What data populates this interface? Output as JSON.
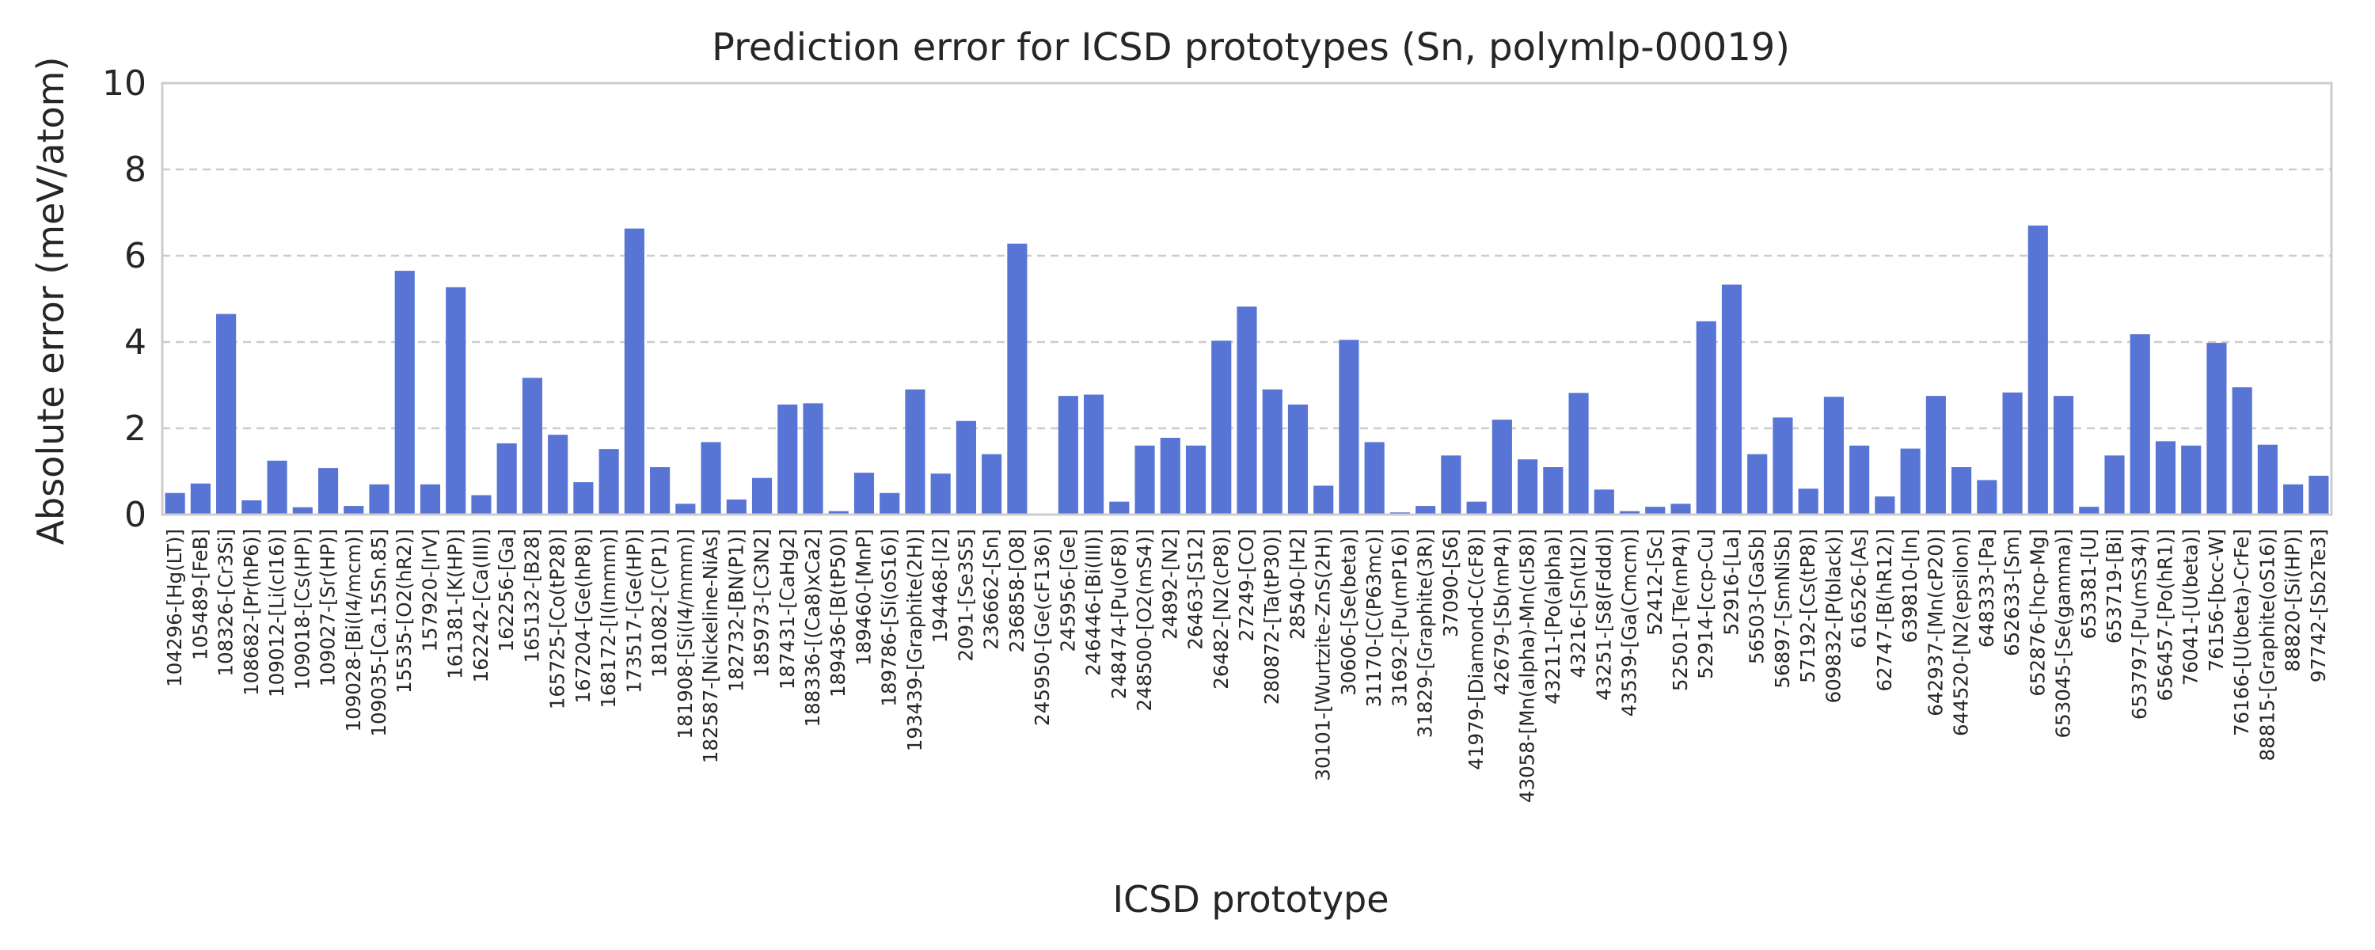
{
  "chart_data": {
    "type": "bar",
    "title": "Prediction error for ICSD prototypes (Sn, polymlp-00019)",
    "xlabel": "ICSD prototype",
    "ylabel": "Absolute error (meV/atom)",
    "ylim": [
      0,
      10
    ],
    "yticks": [
      "0",
      "2",
      "4",
      "6",
      "8",
      "10"
    ],
    "grid": "horizontal dashed",
    "bar_color": "#5875d5",
    "categories": [
      "104296-[Hg(LT)]",
      "105489-[FeB]",
      "108326-[Cr3Si]",
      "108682-[Pr(hP6)]",
      "109012-[Li(cI16)]",
      "109018-[Cs(HP)]",
      "109027-[Sr(HP)]",
      "109028-[Bi(I4/mcm)]",
      "109035-[Ca.15Sn.85]",
      "15535-[O2(hR2)]",
      "157920-[IrV]",
      "161381-[K(HP)]",
      "162242-[Ca(III)]",
      "162256-[Ga]",
      "165132-[B28]",
      "165725-[Co(tP28)]",
      "167204-[Ge(hP8)]",
      "168172-[I(Immm)]",
      "173517-[Ge(HP)]",
      "181082-[C(P1)]",
      "181908-[Si(I4/mmm)]",
      "182587-[Nickeline-NiAs]",
      "182732-[BN(P1)]",
      "185973-[C3N2]",
      "187431-[CaHg2]",
      "188336-[(Ca8)xCa2]",
      "189436-[B(tP50)]",
      "189460-[MnP]",
      "189786-[Si(oS16)]",
      "193439-[Graphite(2H)]",
      "194468-[I2]",
      "2091-[Se3S5]",
      "236662-[Sn]",
      "236858-[O8]",
      "245950-[Ge(cF136)]",
      "245956-[Ge]",
      "246446-[Bi(III)]",
      "248474-[Pu(oF8)]",
      "248500-[O2(mS4)]",
      "24892-[N2]",
      "26463-[S12]",
      "26482-[N2(cP8)]",
      "27249-[CO]",
      "280872-[Ta(tP30)]",
      "28540-[H2]",
      "30101-[Wurtzite-ZnS(2H)]",
      "30606-[Se(beta)]",
      "31170-[C(P63mc)]",
      "31692-[Pu(mP16)]",
      "31829-[Graphite(3R)]",
      "37090-[S6]",
      "41979-[Diamond-C(cF8)]",
      "42679-[Sb(mP4)]",
      "43058-[Mn(alpha)-Mn(cI58)]",
      "43211-[Po(alpha)]",
      "43216-[Sn(tI2)]",
      "43251-[S8(Fddd)]",
      "43539-[Ga(Cmcm)]",
      "52412-[Sc]",
      "52501-[Te(mP4)]",
      "52914-[ccp-Cu]",
      "52916-[La]",
      "56503-[GaSb]",
      "56897-[SmNiSb]",
      "57192-[Cs(tP8)]",
      "609832-[P(black)]",
      "616526-[As]",
      "62747-[B(hR12)]",
      "639810-[In]",
      "642937-[Mn(cP20)]",
      "644520-[N2(epsilon)]",
      "648333-[Pa]",
      "652633-[Sm]",
      "652876-[hcp-Mg]",
      "653045-[Se(gamma)]",
      "653381-[U]",
      "653719-[Bi]",
      "653797-[Pu(mS34)]",
      "656457-[Po(hR1)]",
      "76041-[U(beta)]",
      "76156-[bcc-W]",
      "76166-[U(beta)-CrFe]",
      "88815-[Graphite(oS16)]",
      "88820-[Si(HP)]",
      "97742-[Sb2Te3]"
    ],
    "values": [
      0.5,
      0.72,
      4.65,
      0.33,
      1.25,
      0.17,
      1.08,
      0.2,
      0.7,
      5.65,
      0.7,
      5.27,
      0.45,
      1.65,
      3.17,
      1.85,
      0.75,
      1.52,
      6.63,
      1.1,
      0.25,
      1.68,
      0.35,
      0.85,
      2.55,
      2.58,
      0.08,
      0.97,
      0.5,
      2.9,
      0.95,
      2.17,
      1.4,
      6.28,
      0.02,
      2.75,
      2.78,
      0.3,
      1.6,
      1.78,
      1.6,
      4.03,
      4.82,
      2.9,
      2.55,
      0.67,
      4.05,
      1.68,
      0.05,
      0.2,
      1.37,
      0.3,
      2.2,
      1.28,
      1.1,
      2.82,
      0.58,
      0.08,
      0.18,
      0.25,
      4.48,
      5.33,
      1.4,
      2.25,
      0.6,
      2.73,
      1.6,
      0.42,
      1.53,
      2.75,
      1.1,
      0.8,
      2.83,
      6.7,
      2.75,
      0.18,
      1.37,
      4.18,
      1.7,
      1.6,
      3.98,
      2.95,
      1.62,
      0.7,
      0.9
    ]
  }
}
